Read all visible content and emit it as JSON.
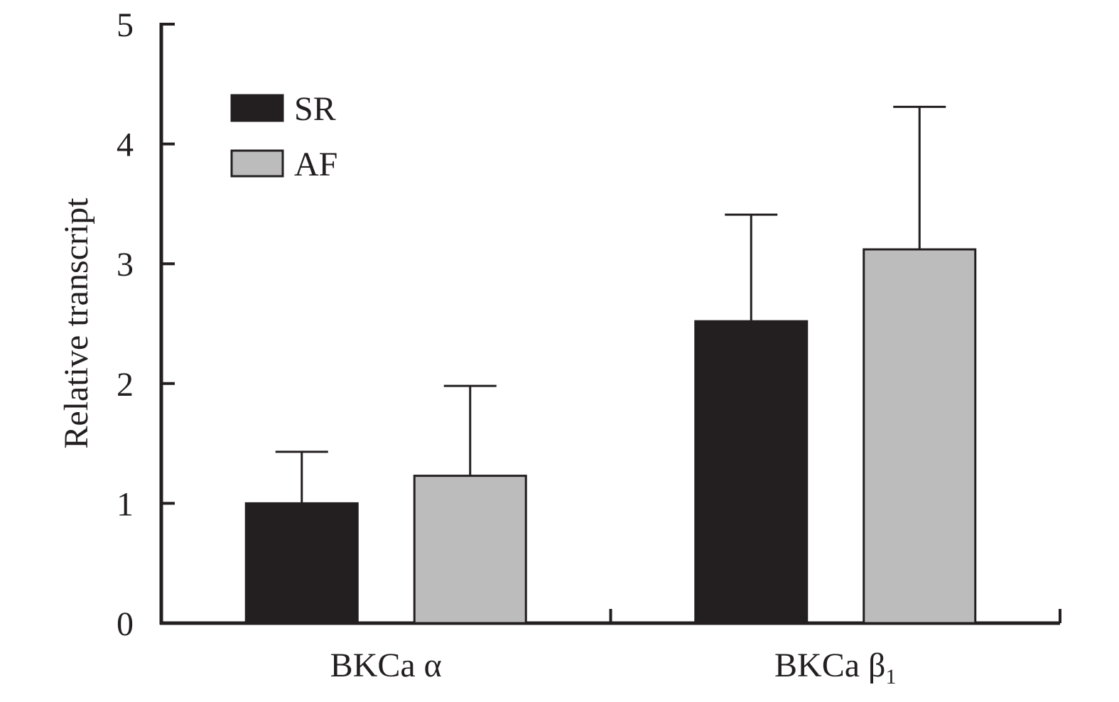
{
  "chart_data": {
    "type": "bar",
    "title": "",
    "xlabel": "",
    "ylabel": "Relative transcript",
    "categories": [
      {
        "label": "BKCa",
        "greek": "α",
        "sub": ""
      },
      {
        "label": "BKCa",
        "greek": "β",
        "sub": "1"
      }
    ],
    "series": [
      {
        "name": "SR",
        "color": "#231f20",
        "values": [
          1.0,
          2.52
        ],
        "errors": [
          0.43,
          0.89
        ]
      },
      {
        "name": "AF",
        "color": "#bcbcbc",
        "values": [
          1.23,
          3.12
        ],
        "errors": [
          0.75,
          1.19
        ]
      }
    ],
    "ylim": [
      0,
      5
    ],
    "yticks": [
      "0",
      "1",
      "2",
      "3",
      "4",
      "5"
    ],
    "grid": false,
    "legend": "top-left",
    "error_bars": "upper"
  }
}
